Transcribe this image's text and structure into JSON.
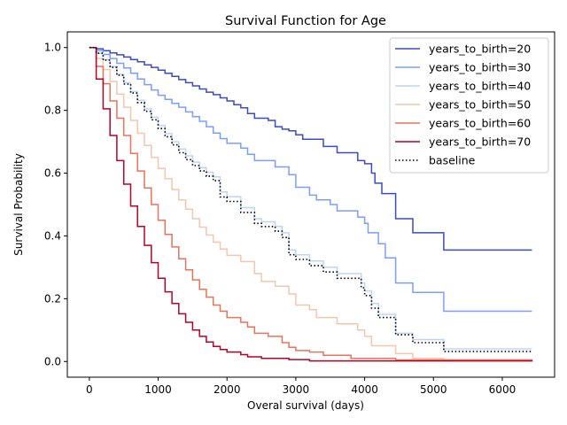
{
  "chart_data": {
    "type": "line",
    "step": true,
    "title": "Survival Function for Age",
    "xlabel": "Overal survival (days)",
    "ylabel": "Survival Probability",
    "xlim": [
      -320,
      6760
    ],
    "ylim": [
      -0.05,
      1.05
    ],
    "xticks": [
      0,
      1000,
      2000,
      3000,
      4000,
      5000,
      6000
    ],
    "yticks": [
      0.0,
      0.2,
      0.4,
      0.6,
      0.8,
      1.0
    ],
    "xtick_labels": [
      "0",
      "1000",
      "2000",
      "3000",
      "4000",
      "5000",
      "6000"
    ],
    "ytick_labels": [
      "0.0",
      "0.2",
      "0.4",
      "0.6",
      "0.8",
      "1.0"
    ],
    "grid": false,
    "legend_position": "top-right",
    "series": [
      {
        "name": "years_to_birth=20",
        "color": "#3b4cc0",
        "dash": "solid",
        "points": [
          [
            0,
            1.0
          ],
          [
            100,
            0.996
          ],
          [
            200,
            0.99
          ],
          [
            300,
            0.983
          ],
          [
            400,
            0.977
          ],
          [
            500,
            0.97
          ],
          [
            600,
            0.962
          ],
          [
            700,
            0.955
          ],
          [
            800,
            0.945
          ],
          [
            900,
            0.937
          ],
          [
            1000,
            0.928
          ],
          [
            1100,
            0.918
          ],
          [
            1200,
            0.908
          ],
          [
            1300,
            0.898
          ],
          [
            1400,
            0.888
          ],
          [
            1500,
            0.878
          ],
          [
            1600,
            0.868
          ],
          [
            1700,
            0.858
          ],
          [
            1800,
            0.85
          ],
          [
            1900,
            0.84
          ],
          [
            2000,
            0.83
          ],
          [
            2100,
            0.818
          ],
          [
            2200,
            0.808
          ],
          [
            2300,
            0.79
          ],
          [
            2400,
            0.775
          ],
          [
            2600,
            0.768
          ],
          [
            2700,
            0.748
          ],
          [
            2800,
            0.74
          ],
          [
            2900,
            0.735
          ],
          [
            3000,
            0.722
          ],
          [
            3100,
            0.708
          ],
          [
            3400,
            0.685
          ],
          [
            3600,
            0.665
          ],
          [
            3900,
            0.64
          ],
          [
            4000,
            0.63
          ],
          [
            4100,
            0.6
          ],
          [
            4150,
            0.568
          ],
          [
            4250,
            0.535
          ],
          [
            4450,
            0.455
          ],
          [
            4700,
            0.41
          ],
          [
            5150,
            0.355
          ],
          [
            6430,
            0.355
          ]
        ]
      },
      {
        "name": "years_to_birth=30",
        "color": "#7b9ff9",
        "dash": "solid",
        "points": [
          [
            0,
            1.0
          ],
          [
            100,
            0.99
          ],
          [
            200,
            0.978
          ],
          [
            300,
            0.965
          ],
          [
            400,
            0.95
          ],
          [
            500,
            0.935
          ],
          [
            600,
            0.918
          ],
          [
            700,
            0.9
          ],
          [
            800,
            0.882
          ],
          [
            900,
            0.865
          ],
          [
            1000,
            0.848
          ],
          [
            1100,
            0.835
          ],
          [
            1200,
            0.822
          ],
          [
            1300,
            0.81
          ],
          [
            1400,
            0.795
          ],
          [
            1500,
            0.78
          ],
          [
            1600,
            0.765
          ],
          [
            1700,
            0.748
          ],
          [
            1800,
            0.728
          ],
          [
            1900,
            0.71
          ],
          [
            2000,
            0.695
          ],
          [
            2200,
            0.68
          ],
          [
            2300,
            0.66
          ],
          [
            2400,
            0.64
          ],
          [
            2700,
            0.62
          ],
          [
            2900,
            0.595
          ],
          [
            3000,
            0.555
          ],
          [
            3200,
            0.53
          ],
          [
            3300,
            0.515
          ],
          [
            3500,
            0.5
          ],
          [
            3600,
            0.48
          ],
          [
            3900,
            0.46
          ],
          [
            4000,
            0.44
          ],
          [
            4050,
            0.41
          ],
          [
            4200,
            0.375
          ],
          [
            4300,
            0.33
          ],
          [
            4450,
            0.25
          ],
          [
            4700,
            0.22
          ],
          [
            5150,
            0.16
          ],
          [
            6430,
            0.16
          ]
        ]
      },
      {
        "name": "years_to_birth=40",
        "color": "#c0d4f5",
        "dash": "solid",
        "points": [
          [
            0,
            1.0
          ],
          [
            100,
            0.982
          ],
          [
            200,
            0.962
          ],
          [
            300,
            0.94
          ],
          [
            400,
            0.915
          ],
          [
            500,
            0.888
          ],
          [
            600,
            0.86
          ],
          [
            700,
            0.832
          ],
          [
            800,
            0.805
          ],
          [
            900,
            0.778
          ],
          [
            1000,
            0.752
          ],
          [
            1100,
            0.726
          ],
          [
            1200,
            0.7
          ],
          [
            1300,
            0.677
          ],
          [
            1400,
            0.655
          ],
          [
            1500,
            0.635
          ],
          [
            1600,
            0.618
          ],
          [
            1700,
            0.603
          ],
          [
            1800,
            0.588
          ],
          [
            1900,
            0.54
          ],
          [
            2000,
            0.525
          ],
          [
            2200,
            0.49
          ],
          [
            2400,
            0.455
          ],
          [
            2500,
            0.445
          ],
          [
            2700,
            0.43
          ],
          [
            2800,
            0.41
          ],
          [
            2900,
            0.355
          ],
          [
            3000,
            0.34
          ],
          [
            3200,
            0.32
          ],
          [
            3400,
            0.3
          ],
          [
            3600,
            0.28
          ],
          [
            3950,
            0.25
          ],
          [
            4000,
            0.225
          ],
          [
            4100,
            0.185
          ],
          [
            4200,
            0.15
          ],
          [
            4450,
            0.09
          ],
          [
            4700,
            0.07
          ],
          [
            5150,
            0.04
          ],
          [
            6430,
            0.04
          ]
        ]
      },
      {
        "name": "years_to_birth=50",
        "color": "#f4c6ad",
        "dash": "solid",
        "points": [
          [
            0,
            1.0
          ],
          [
            100,
            0.965
          ],
          [
            200,
            0.93
          ],
          [
            300,
            0.892
          ],
          [
            400,
            0.852
          ],
          [
            500,
            0.81
          ],
          [
            600,
            0.768
          ],
          [
            700,
            0.727
          ],
          [
            800,
            0.688
          ],
          [
            900,
            0.65
          ],
          [
            1000,
            0.615
          ],
          [
            1100,
            0.582
          ],
          [
            1200,
            0.548
          ],
          [
            1300,
            0.515
          ],
          [
            1400,
            0.485
          ],
          [
            1500,
            0.455
          ],
          [
            1600,
            0.428
          ],
          [
            1700,
            0.403
          ],
          [
            1800,
            0.38
          ],
          [
            1900,
            0.358
          ],
          [
            2000,
            0.338
          ],
          [
            2200,
            0.318
          ],
          [
            2400,
            0.28
          ],
          [
            2500,
            0.255
          ],
          [
            2700,
            0.24
          ],
          [
            2900,
            0.215
          ],
          [
            3000,
            0.18
          ],
          [
            3200,
            0.165
          ],
          [
            3300,
            0.14
          ],
          [
            3600,
            0.12
          ],
          [
            3900,
            0.1
          ],
          [
            4000,
            0.08
          ],
          [
            4100,
            0.05
          ],
          [
            4450,
            0.025
          ],
          [
            4700,
            0.01
          ],
          [
            5150,
            0.005
          ],
          [
            6430,
            0.005
          ]
        ]
      },
      {
        "name": "years_to_birth=60",
        "color": "#e7745b",
        "dash": "solid",
        "points": [
          [
            0,
            1.0
          ],
          [
            100,
            0.94
          ],
          [
            200,
            0.885
          ],
          [
            300,
            0.83
          ],
          [
            400,
            0.775
          ],
          [
            500,
            0.72
          ],
          [
            600,
            0.663
          ],
          [
            700,
            0.607
          ],
          [
            800,
            0.553
          ],
          [
            900,
            0.5
          ],
          [
            1000,
            0.45
          ],
          [
            1100,
            0.405
          ],
          [
            1200,
            0.365
          ],
          [
            1300,
            0.327
          ],
          [
            1400,
            0.292
          ],
          [
            1500,
            0.26
          ],
          [
            1600,
            0.23
          ],
          [
            1700,
            0.205
          ],
          [
            1800,
            0.18
          ],
          [
            1900,
            0.16
          ],
          [
            2000,
            0.14
          ],
          [
            2200,
            0.125
          ],
          [
            2300,
            0.11
          ],
          [
            2400,
            0.09
          ],
          [
            2600,
            0.08
          ],
          [
            2800,
            0.06
          ],
          [
            2900,
            0.045
          ],
          [
            3000,
            0.035
          ],
          [
            3200,
            0.03
          ],
          [
            3400,
            0.02
          ],
          [
            3800,
            0.01
          ],
          [
            4450,
            0.005
          ],
          [
            6430,
            0.0
          ]
        ]
      },
      {
        "name": "years_to_birth=70",
        "color": "#b40426",
        "dash": "solid",
        "points": [
          [
            0,
            1.0
          ],
          [
            100,
            0.9
          ],
          [
            200,
            0.805
          ],
          [
            300,
            0.72
          ],
          [
            400,
            0.64
          ],
          [
            500,
            0.565
          ],
          [
            600,
            0.495
          ],
          [
            700,
            0.43
          ],
          [
            800,
            0.37
          ],
          [
            900,
            0.315
          ],
          [
            1000,
            0.265
          ],
          [
            1100,
            0.222
          ],
          [
            1200,
            0.185
          ],
          [
            1300,
            0.152
          ],
          [
            1400,
            0.125
          ],
          [
            1500,
            0.1
          ],
          [
            1600,
            0.08
          ],
          [
            1700,
            0.062
          ],
          [
            1800,
            0.048
          ],
          [
            1900,
            0.038
          ],
          [
            2000,
            0.03
          ],
          [
            2200,
            0.022
          ],
          [
            2300,
            0.015
          ],
          [
            2500,
            0.01
          ],
          [
            2900,
            0.006
          ],
          [
            3200,
            0.002
          ],
          [
            6430,
            0.0
          ]
        ]
      },
      {
        "name": "baseline",
        "color": "#000000",
        "dash": "dotted",
        "points": [
          [
            0,
            1.0
          ],
          [
            100,
            0.982
          ],
          [
            200,
            0.96
          ],
          [
            300,
            0.937
          ],
          [
            400,
            0.912
          ],
          [
            500,
            0.884
          ],
          [
            600,
            0.855
          ],
          [
            700,
            0.825
          ],
          [
            800,
            0.797
          ],
          [
            900,
            0.77
          ],
          [
            1000,
            0.742
          ],
          [
            1100,
            0.716
          ],
          [
            1200,
            0.69
          ],
          [
            1300,
            0.665
          ],
          [
            1400,
            0.643
          ],
          [
            1500,
            0.624
          ],
          [
            1600,
            0.607
          ],
          [
            1700,
            0.59
          ],
          [
            1800,
            0.576
          ],
          [
            1900,
            0.524
          ],
          [
            2000,
            0.51
          ],
          [
            2200,
            0.475
          ],
          [
            2400,
            0.44
          ],
          [
            2500,
            0.43
          ],
          [
            2700,
            0.415
          ],
          [
            2800,
            0.395
          ],
          [
            2900,
            0.34
          ],
          [
            3000,
            0.325
          ],
          [
            3200,
            0.305
          ],
          [
            3400,
            0.285
          ],
          [
            3600,
            0.265
          ],
          [
            3950,
            0.235
          ],
          [
            4000,
            0.21
          ],
          [
            4100,
            0.17
          ],
          [
            4200,
            0.14
          ],
          [
            4450,
            0.085
          ],
          [
            4700,
            0.06
          ],
          [
            5150,
            0.032
          ],
          [
            6430,
            0.032
          ]
        ]
      }
    ]
  }
}
